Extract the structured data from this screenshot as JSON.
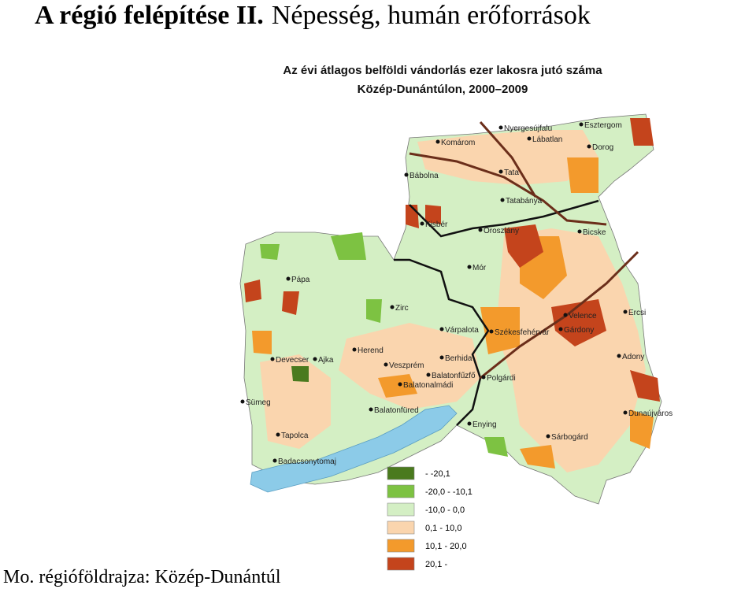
{
  "slide": {
    "title_bold": "A régió felépítése II.",
    "title_rest": "Népesség, humán erőforrások",
    "footer": "Mo. régióföldrajza: Közép-Dunántúl"
  },
  "map": {
    "title": [
      "Az évi átlagos belföldi vándorlás ezer lakosra jutó száma",
      "Közép-Dunántúlon, 2000–2009"
    ],
    "towns": [
      "Nyergesújfalu",
      "Esztergom",
      "Lábatlan",
      "Komárom",
      "Dorog",
      "Bábolna",
      "Tata",
      "Tatabánya",
      "Kisbér",
      "Oroszlány",
      "Bicske",
      "Pápa",
      "Mór",
      "Zirc",
      "Velence",
      "Ercsi",
      "Várpalota",
      "Székesfehérvár",
      "Gárdony",
      "Herend",
      "Devecser",
      "Ajka",
      "Veszprém",
      "Berhida",
      "Balatonfűzfő",
      "Polgárdi",
      "Adony",
      "Balatonalmádi",
      "Sümeg",
      "Balatonfüred",
      "Enying",
      "Dunaújváros",
      "Tapolca",
      "Sárbogárd",
      "Badacsonytomaj"
    ],
    "legend": [
      {
        "label": "- -20,1",
        "color": "#4a7a1e"
      },
      {
        "label": "-20,0 - -10,1",
        "color": "#7dc242"
      },
      {
        "label": "-10,0 - 0,0",
        "color": "#d4efc4"
      },
      {
        "label": "0,1 - 10,0",
        "color": "#fad5ae"
      },
      {
        "label": "10,1 - 20,0",
        "color": "#f39a2c"
      },
      {
        "label": "20,1 -",
        "color": "#c4441c"
      }
    ]
  }
}
